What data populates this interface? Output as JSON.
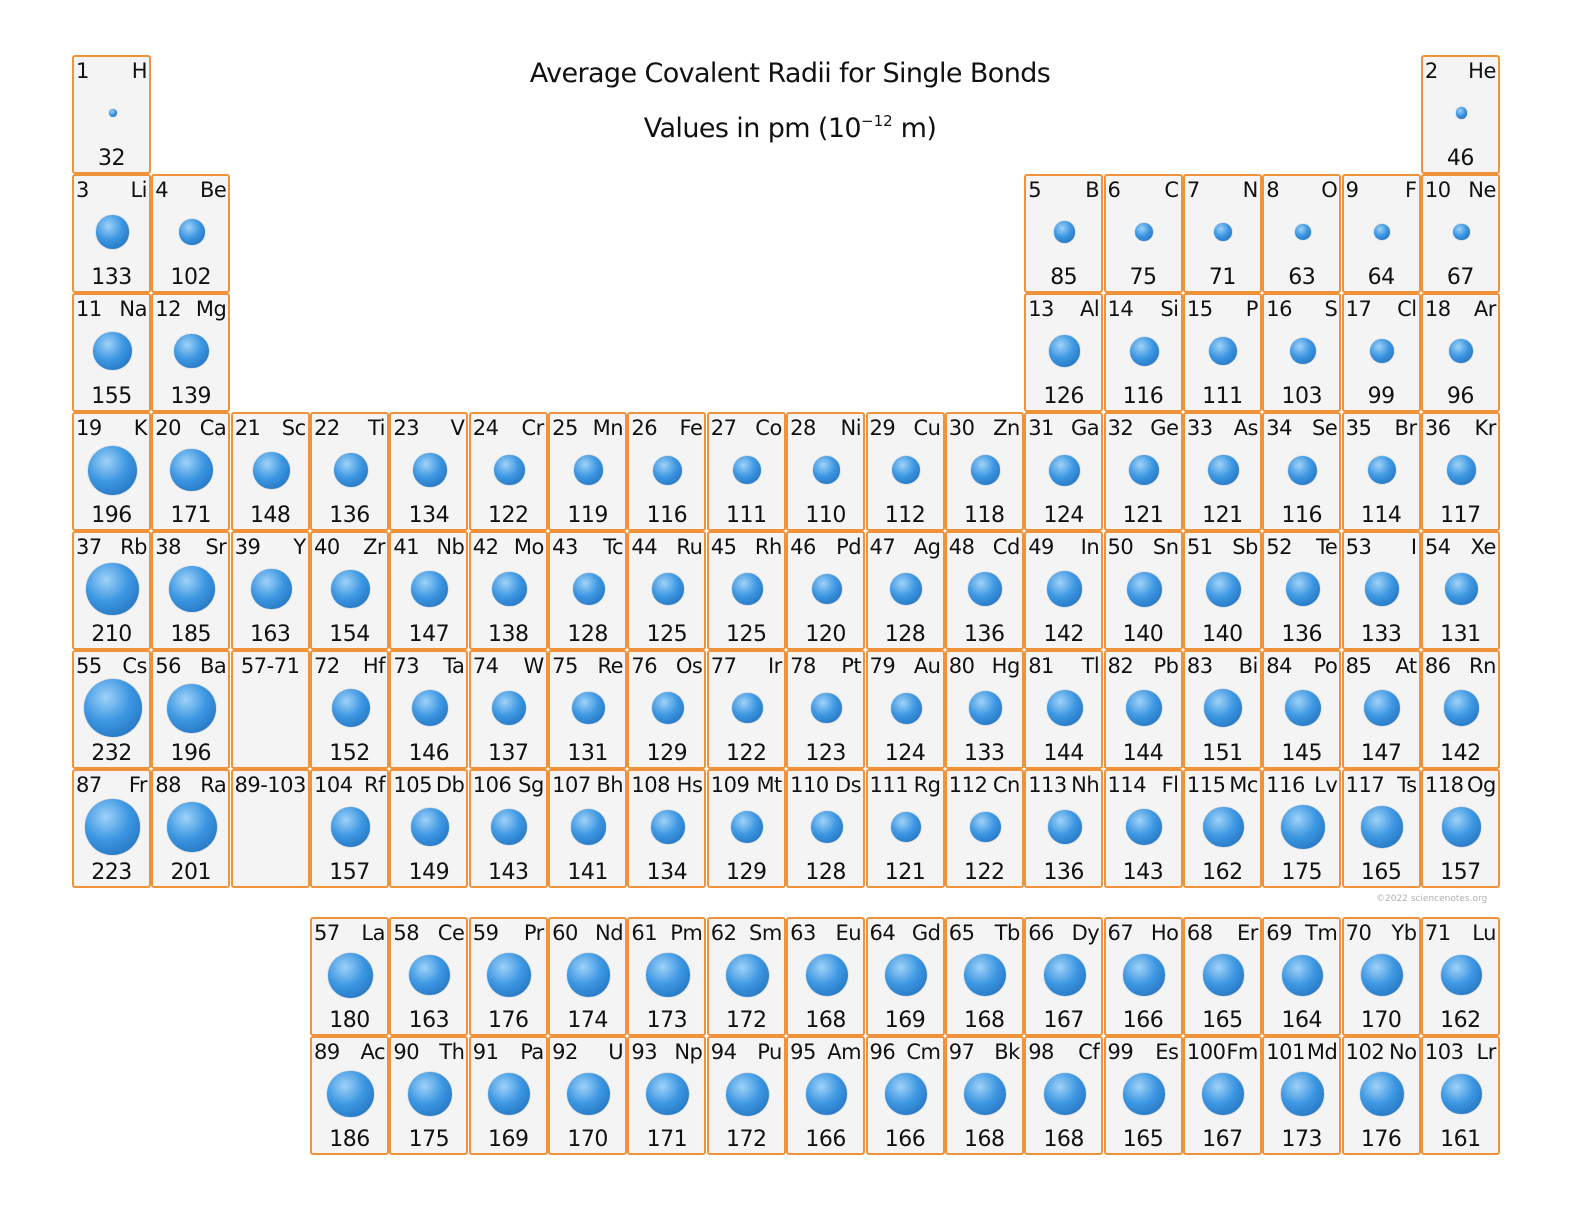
{
  "title_line1": "Average Covalent Radii for Single Bonds",
  "title_line2_text": "Values in pm (10",
  "title_line2_exp": "−12",
  "title_line2_end": " m)",
  "credit": "©2022 sciencenotes.org",
  "colors": {
    "cell_border": "#f0923a",
    "cell_fill": "#f4f4f4",
    "ball": "#3d97e2"
  },
  "placeholders": [
    {
      "label": "57-71",
      "row": 6,
      "col": 3
    },
    {
      "label": "89-103",
      "row": 7,
      "col": 3
    }
  ],
  "chart_data": {
    "type": "table",
    "unit": "pm",
    "elements": [
      {
        "n": 1,
        "s": "H",
        "r": 32,
        "row": 1,
        "col": 1
      },
      {
        "n": 2,
        "s": "He",
        "r": 46,
        "row": 1,
        "col": 18
      },
      {
        "n": 3,
        "s": "Li",
        "r": 133,
        "row": 2,
        "col": 1
      },
      {
        "n": 4,
        "s": "Be",
        "r": 102,
        "row": 2,
        "col": 2
      },
      {
        "n": 5,
        "s": "B",
        "r": 85,
        "row": 2,
        "col": 13
      },
      {
        "n": 6,
        "s": "C",
        "r": 75,
        "row": 2,
        "col": 14
      },
      {
        "n": 7,
        "s": "N",
        "r": 71,
        "row": 2,
        "col": 15
      },
      {
        "n": 8,
        "s": "O",
        "r": 63,
        "row": 2,
        "col": 16
      },
      {
        "n": 9,
        "s": "F",
        "r": 64,
        "row": 2,
        "col": 17
      },
      {
        "n": 10,
        "s": "Ne",
        "r": 67,
        "row": 2,
        "col": 18
      },
      {
        "n": 11,
        "s": "Na",
        "r": 155,
        "row": 3,
        "col": 1
      },
      {
        "n": 12,
        "s": "Mg",
        "r": 139,
        "row": 3,
        "col": 2
      },
      {
        "n": 13,
        "s": "Al",
        "r": 126,
        "row": 3,
        "col": 13
      },
      {
        "n": 14,
        "s": "Si",
        "r": 116,
        "row": 3,
        "col": 14
      },
      {
        "n": 15,
        "s": "P",
        "r": 111,
        "row": 3,
        "col": 15
      },
      {
        "n": 16,
        "s": "S",
        "r": 103,
        "row": 3,
        "col": 16
      },
      {
        "n": 17,
        "s": "Cl",
        "r": 99,
        "row": 3,
        "col": 17
      },
      {
        "n": 18,
        "s": "Ar",
        "r": 96,
        "row": 3,
        "col": 18
      },
      {
        "n": 19,
        "s": "K",
        "r": 196,
        "row": 4,
        "col": 1
      },
      {
        "n": 20,
        "s": "Ca",
        "r": 171,
        "row": 4,
        "col": 2
      },
      {
        "n": 21,
        "s": "Sc",
        "r": 148,
        "row": 4,
        "col": 3
      },
      {
        "n": 22,
        "s": "Ti",
        "r": 136,
        "row": 4,
        "col": 4
      },
      {
        "n": 23,
        "s": "V",
        "r": 134,
        "row": 4,
        "col": 5
      },
      {
        "n": 24,
        "s": "Cr",
        "r": 122,
        "row": 4,
        "col": 6
      },
      {
        "n": 25,
        "s": "Mn",
        "r": 119,
        "row": 4,
        "col": 7
      },
      {
        "n": 26,
        "s": "Fe",
        "r": 116,
        "row": 4,
        "col": 8
      },
      {
        "n": 27,
        "s": "Co",
        "r": 111,
        "row": 4,
        "col": 9
      },
      {
        "n": 28,
        "s": "Ni",
        "r": 110,
        "row": 4,
        "col": 10
      },
      {
        "n": 29,
        "s": "Cu",
        "r": 112,
        "row": 4,
        "col": 11
      },
      {
        "n": 30,
        "s": "Zn",
        "r": 118,
        "row": 4,
        "col": 12
      },
      {
        "n": 31,
        "s": "Ga",
        "r": 124,
        "row": 4,
        "col": 13
      },
      {
        "n": 32,
        "s": "Ge",
        "r": 121,
        "row": 4,
        "col": 14
      },
      {
        "n": 33,
        "s": "As",
        "r": 121,
        "row": 4,
        "col": 15
      },
      {
        "n": 34,
        "s": "Se",
        "r": 116,
        "row": 4,
        "col": 16
      },
      {
        "n": 35,
        "s": "Br",
        "r": 114,
        "row": 4,
        "col": 17
      },
      {
        "n": 36,
        "s": "Kr",
        "r": 117,
        "row": 4,
        "col": 18
      },
      {
        "n": 37,
        "s": "Rb",
        "r": 210,
        "row": 5,
        "col": 1
      },
      {
        "n": 38,
        "s": "Sr",
        "r": 185,
        "row": 5,
        "col": 2
      },
      {
        "n": 39,
        "s": "Y",
        "r": 163,
        "row": 5,
        "col": 3
      },
      {
        "n": 40,
        "s": "Zr",
        "r": 154,
        "row": 5,
        "col": 4
      },
      {
        "n": 41,
        "s": "Nb",
        "r": 147,
        "row": 5,
        "col": 5
      },
      {
        "n": 42,
        "s": "Mo",
        "r": 138,
        "row": 5,
        "col": 6
      },
      {
        "n": 43,
        "s": "Tc",
        "r": 128,
        "row": 5,
        "col": 7
      },
      {
        "n": 44,
        "s": "Ru",
        "r": 125,
        "row": 5,
        "col": 8
      },
      {
        "n": 45,
        "s": "Rh",
        "r": 125,
        "row": 5,
        "col": 9
      },
      {
        "n": 46,
        "s": "Pd",
        "r": 120,
        "row": 5,
        "col": 10
      },
      {
        "n": 47,
        "s": "Ag",
        "r": 128,
        "row": 5,
        "col": 11
      },
      {
        "n": 48,
        "s": "Cd",
        "r": 136,
        "row": 5,
        "col": 12
      },
      {
        "n": 49,
        "s": "In",
        "r": 142,
        "row": 5,
        "col": 13
      },
      {
        "n": 50,
        "s": "Sn",
        "r": 140,
        "row": 5,
        "col": 14
      },
      {
        "n": 51,
        "s": "Sb",
        "r": 140,
        "row": 5,
        "col": 15
      },
      {
        "n": 52,
        "s": "Te",
        "r": 136,
        "row": 5,
        "col": 16
      },
      {
        "n": 53,
        "s": "I",
        "r": 133,
        "row": 5,
        "col": 17
      },
      {
        "n": 54,
        "s": "Xe",
        "r": 131,
        "row": 5,
        "col": 18
      },
      {
        "n": 55,
        "s": "Cs",
        "r": 232,
        "row": 6,
        "col": 1
      },
      {
        "n": 56,
        "s": "Ba",
        "r": 196,
        "row": 6,
        "col": 2
      },
      {
        "n": 72,
        "s": "Hf",
        "r": 152,
        "row": 6,
        "col": 4
      },
      {
        "n": 73,
        "s": "Ta",
        "r": 146,
        "row": 6,
        "col": 5
      },
      {
        "n": 74,
        "s": "W",
        "r": 137,
        "row": 6,
        "col": 6
      },
      {
        "n": 75,
        "s": "Re",
        "r": 131,
        "row": 6,
        "col": 7
      },
      {
        "n": 76,
        "s": "Os",
        "r": 129,
        "row": 6,
        "col": 8
      },
      {
        "n": 77,
        "s": "Ir",
        "r": 122,
        "row": 6,
        "col": 9
      },
      {
        "n": 78,
        "s": "Pt",
        "r": 123,
        "row": 6,
        "col": 10
      },
      {
        "n": 79,
        "s": "Au",
        "r": 124,
        "row": 6,
        "col": 11
      },
      {
        "n": 80,
        "s": "Hg",
        "r": 133,
        "row": 6,
        "col": 12
      },
      {
        "n": 81,
        "s": "Tl",
        "r": 144,
        "row": 6,
        "col": 13
      },
      {
        "n": 82,
        "s": "Pb",
        "r": 144,
        "row": 6,
        "col": 14
      },
      {
        "n": 83,
        "s": "Bi",
        "r": 151,
        "row": 6,
        "col": 15
      },
      {
        "n": 84,
        "s": "Po",
        "r": 145,
        "row": 6,
        "col": 16
      },
      {
        "n": 85,
        "s": "At",
        "r": 147,
        "row": 6,
        "col": 17
      },
      {
        "n": 86,
        "s": "Rn",
        "r": 142,
        "row": 6,
        "col": 18
      },
      {
        "n": 87,
        "s": "Fr",
        "r": 223,
        "row": 7,
        "col": 1
      },
      {
        "n": 88,
        "s": "Ra",
        "r": 201,
        "row": 7,
        "col": 2
      },
      {
        "n": 104,
        "s": "Rf",
        "r": 157,
        "row": 7,
        "col": 4
      },
      {
        "n": 105,
        "s": "Db",
        "r": 149,
        "row": 7,
        "col": 5
      },
      {
        "n": 106,
        "s": "Sg",
        "r": 143,
        "row": 7,
        "col": 6
      },
      {
        "n": 107,
        "s": "Bh",
        "r": 141,
        "row": 7,
        "col": 7
      },
      {
        "n": 108,
        "s": "Hs",
        "r": 134,
        "row": 7,
        "col": 8
      },
      {
        "n": 109,
        "s": "Mt",
        "r": 129,
        "row": 7,
        "col": 9
      },
      {
        "n": 110,
        "s": "Ds",
        "r": 128,
        "row": 7,
        "col": 10
      },
      {
        "n": 111,
        "s": "Rg",
        "r": 121,
        "row": 7,
        "col": 11
      },
      {
        "n": 112,
        "s": "Cn",
        "r": 122,
        "row": 7,
        "col": 12
      },
      {
        "n": 113,
        "s": "Nh",
        "r": 136,
        "row": 7,
        "col": 13
      },
      {
        "n": 114,
        "s": "Fl",
        "r": 143,
        "row": 7,
        "col": 14
      },
      {
        "n": 115,
        "s": "Mc",
        "r": 162,
        "row": 7,
        "col": 15
      },
      {
        "n": 116,
        "s": "Lv",
        "r": 175,
        "row": 7,
        "col": 16
      },
      {
        "n": 117,
        "s": "Ts",
        "r": 165,
        "row": 7,
        "col": 17
      },
      {
        "n": 118,
        "s": "Og",
        "r": 157,
        "row": 7,
        "col": 18
      },
      {
        "n": 57,
        "s": "La",
        "r": 180,
        "row": 9,
        "col": 4
      },
      {
        "n": 58,
        "s": "Ce",
        "r": 163,
        "row": 9,
        "col": 5
      },
      {
        "n": 59,
        "s": "Pr",
        "r": 176,
        "row": 9,
        "col": 6
      },
      {
        "n": 60,
        "s": "Nd",
        "r": 174,
        "row": 9,
        "col": 7
      },
      {
        "n": 61,
        "s": "Pm",
        "r": 173,
        "row": 9,
        "col": 8
      },
      {
        "n": 62,
        "s": "Sm",
        "r": 172,
        "row": 9,
        "col": 9
      },
      {
        "n": 63,
        "s": "Eu",
        "r": 168,
        "row": 9,
        "col": 10
      },
      {
        "n": 64,
        "s": "Gd",
        "r": 169,
        "row": 9,
        "col": 11
      },
      {
        "n": 65,
        "s": "Tb",
        "r": 168,
        "row": 9,
        "col": 12
      },
      {
        "n": 66,
        "s": "Dy",
        "r": 167,
        "row": 9,
        "col": 13
      },
      {
        "n": 67,
        "s": "Ho",
        "r": 166,
        "row": 9,
        "col": 14
      },
      {
        "n": 68,
        "s": "Er",
        "r": 165,
        "row": 9,
        "col": 15
      },
      {
        "n": 69,
        "s": "Tm",
        "r": 164,
        "row": 9,
        "col": 16
      },
      {
        "n": 70,
        "s": "Yb",
        "r": 170,
        "row": 9,
        "col": 17
      },
      {
        "n": 71,
        "s": "Lu",
        "r": 162,
        "row": 9,
        "col": 18
      },
      {
        "n": 89,
        "s": "Ac",
        "r": 186,
        "row": 10,
        "col": 4
      },
      {
        "n": 90,
        "s": "Th",
        "r": 175,
        "row": 10,
        "col": 5
      },
      {
        "n": 91,
        "s": "Pa",
        "r": 169,
        "row": 10,
        "col": 6
      },
      {
        "n": 92,
        "s": "U",
        "r": 170,
        "row": 10,
        "col": 7
      },
      {
        "n": 93,
        "s": "Np",
        "r": 171,
        "row": 10,
        "col": 8
      },
      {
        "n": 94,
        "s": "Pu",
        "r": 172,
        "row": 10,
        "col": 9
      },
      {
        "n": 95,
        "s": "Am",
        "r": 166,
        "row": 10,
        "col": 10
      },
      {
        "n": 96,
        "s": "Cm",
        "r": 166,
        "row": 10,
        "col": 11
      },
      {
        "n": 97,
        "s": "Bk",
        "r": 168,
        "row": 10,
        "col": 12
      },
      {
        "n": 98,
        "s": "Cf",
        "r": 168,
        "row": 10,
        "col": 13
      },
      {
        "n": 99,
        "s": "Es",
        "r": 165,
        "row": 10,
        "col": 14
      },
      {
        "n": 100,
        "s": "Fm",
        "r": 167,
        "row": 10,
        "col": 15
      },
      {
        "n": 101,
        "s": "Md",
        "r": 173,
        "row": 10,
        "col": 16
      },
      {
        "n": 102,
        "s": "No",
        "r": 176,
        "row": 10,
        "col": 17
      },
      {
        "n": 103,
        "s": "Lr",
        "r": 161,
        "row": 10,
        "col": 18
      }
    ]
  }
}
